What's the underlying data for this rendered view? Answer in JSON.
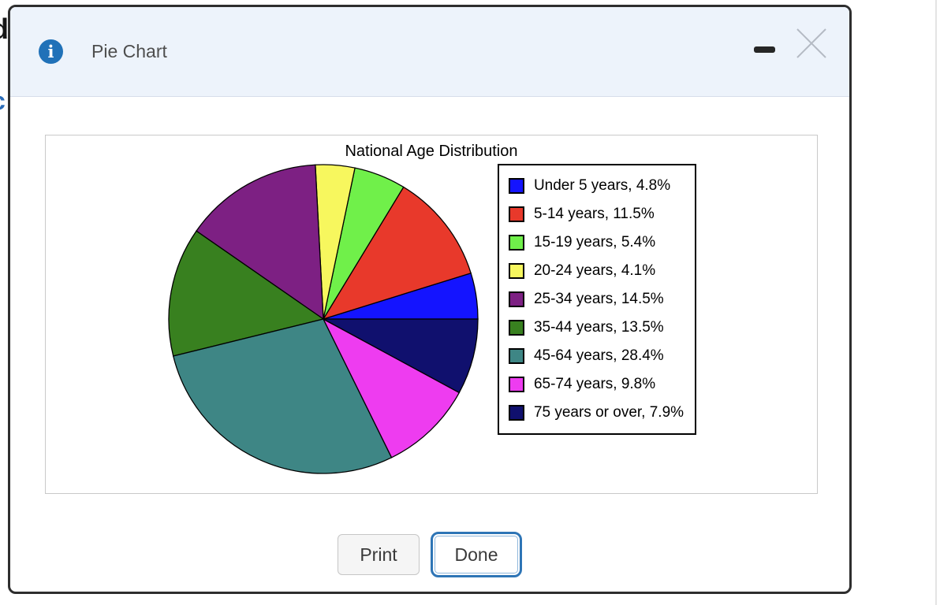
{
  "background": {
    "fragments": [
      {
        "text": "d",
        "color": "#161616"
      },
      {
        "text": "c",
        "color": "#2a6cb8"
      }
    ]
  },
  "dialog": {
    "title": "Pie Chart",
    "info_icon_glyph": "i"
  },
  "chart_data": {
    "type": "pie",
    "title": "National Age Distribution",
    "legend_position": "right",
    "start_angle_deg": 0,
    "direction": "counterclockwise",
    "slices": [
      {
        "label": "Under 5 years",
        "value": 4.8,
        "display": "Under 5 years, 4.8%",
        "color": "#1414ff"
      },
      {
        "label": "5-14 years",
        "value": 11.5,
        "display": "5-14 years, 11.5%",
        "color": "#e8392b"
      },
      {
        "label": "15-19 years",
        "value": 5.4,
        "display": "15-19 years, 5.4%",
        "color": "#70f04a"
      },
      {
        "label": "20-24 years",
        "value": 4.1,
        "display": "20-24 years, 4.1%",
        "color": "#f7f75e"
      },
      {
        "label": "25-34 years",
        "value": 14.5,
        "display": "25-34 years, 14.5%",
        "color": "#7d2083"
      },
      {
        "label": "35-44 years",
        "value": 13.5,
        "display": "35-44 years, 13.5%",
        "color": "#38801f"
      },
      {
        "label": "45-64 years",
        "value": 28.4,
        "display": "45-64 years, 28.4%",
        "color": "#3e8685"
      },
      {
        "label": "65-74 years",
        "value": 9.8,
        "display": "65-74 years, 9.8%",
        "color": "#ee3cf0"
      },
      {
        "label": "75 years or over",
        "value": 7.9,
        "display": "75 years or over, 7.9%",
        "color": "#10106e"
      }
    ]
  },
  "footer": {
    "print_label": "Print",
    "done_label": "Done",
    "accent_color": "#2e75b6"
  }
}
